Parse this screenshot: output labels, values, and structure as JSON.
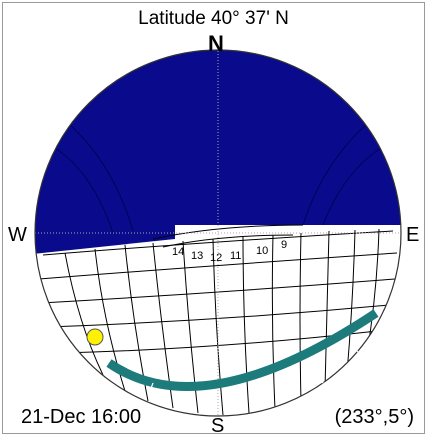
{
  "title": "Latitude 40° 37' N",
  "compass": {
    "north": "N",
    "south": "S",
    "east": "E",
    "west": "W"
  },
  "status": {
    "datetime": "21-Dec 16:00",
    "position": "(233°,5°)"
  },
  "hour_labels": [
    "14",
    "13",
    "12",
    "11",
    "10",
    "9"
  ],
  "sun": {
    "azimuth_deg": 233,
    "altitude_deg": 5
  },
  "colors": {
    "obstruction": "#0A0A8C",
    "sun_path": "#1E7B7B",
    "sun": "#FFF200",
    "grid": "#000000"
  }
}
